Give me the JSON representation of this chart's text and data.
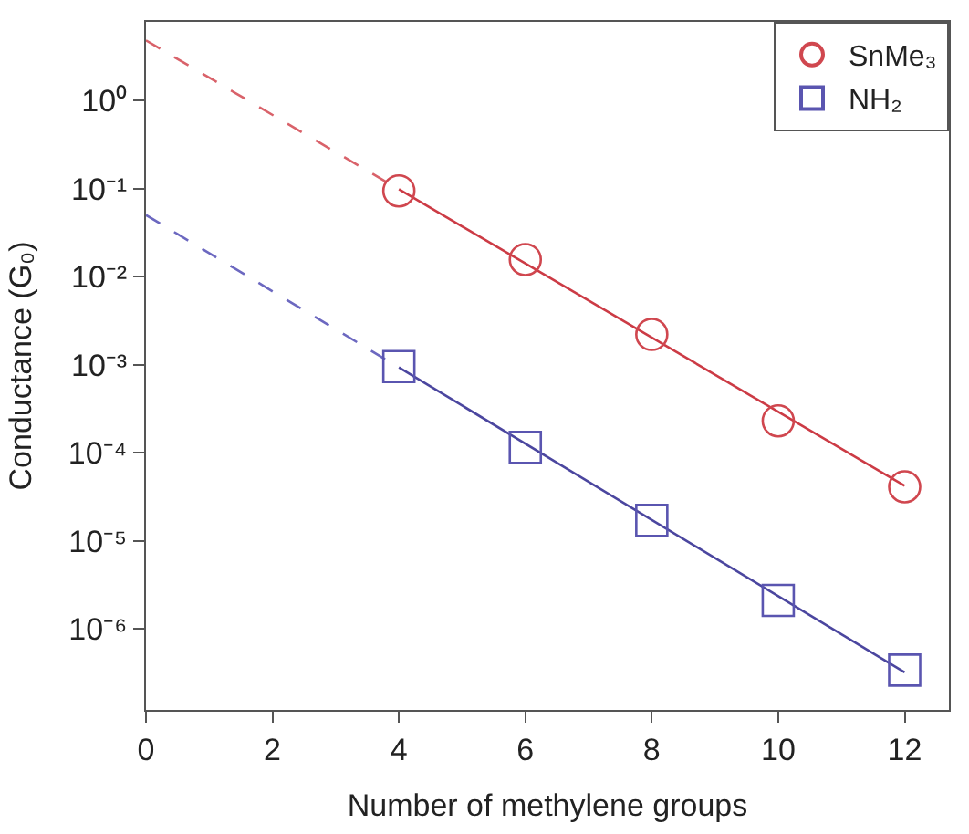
{
  "chart_data": {
    "type": "scatter",
    "xlabel": "Number of methylene groups",
    "ylabel": "Conductance (G₀)",
    "xlim": [
      0,
      12.7
    ],
    "xticks": [
      0,
      2,
      4,
      6,
      8,
      10,
      12
    ],
    "ylim": [
      1.2e-07,
      7.8
    ],
    "log": "y",
    "yticks": [
      {
        "value": 1,
        "label": "10⁰"
      },
      {
        "value": 0.1,
        "label": "10⁻¹"
      },
      {
        "value": 0.01,
        "label": "10⁻²"
      },
      {
        "value": 0.001,
        "label": "10⁻³"
      },
      {
        "value": 0.0001,
        "label": "10⁻⁴"
      },
      {
        "value": 1e-05,
        "label": "10⁻⁵"
      },
      {
        "value": 1e-06,
        "label": "10⁻⁶"
      }
    ],
    "legend": "top right",
    "series": [
      {
        "type": "line",
        "color": "#d9626a",
        "line_style": "dashed",
        "marker": "none",
        "x": [
          0,
          4
        ],
        "values": [
          4.8,
          0.098
        ]
      },
      {
        "type": "line",
        "color": "#cc3b45",
        "line_style": "solid",
        "marker": "none",
        "x": [
          4,
          12
        ],
        "values": [
          0.098,
          4.2e-05
        ]
      },
      {
        "type": "line",
        "color": "#6c68c0",
        "line_style": "dashed",
        "marker": "none",
        "x": [
          0,
          4
        ],
        "values": [
          0.05,
          0.00093
        ]
      },
      {
        "type": "line",
        "color": "#4b469f",
        "line_style": "solid",
        "marker": "none",
        "x": [
          4,
          12
        ],
        "values": [
          0.00093,
          3.2e-07
        ]
      },
      {
        "name": "SnMe₃",
        "color": "#d0474f",
        "marker": "circle",
        "x": [
          4,
          6,
          8,
          10,
          12
        ],
        "values": [
          0.094,
          0.0156,
          0.0022,
          0.00023,
          4.1e-05
        ]
      },
      {
        "name": "NH₂",
        "color": "#5a55b0",
        "marker": "square",
        "x": [
          4,
          6,
          8,
          10,
          12
        ],
        "values": [
          0.00095,
          0.000115,
          1.7e-05,
          2.1e-06,
          3.4e-07
        ]
      }
    ]
  }
}
